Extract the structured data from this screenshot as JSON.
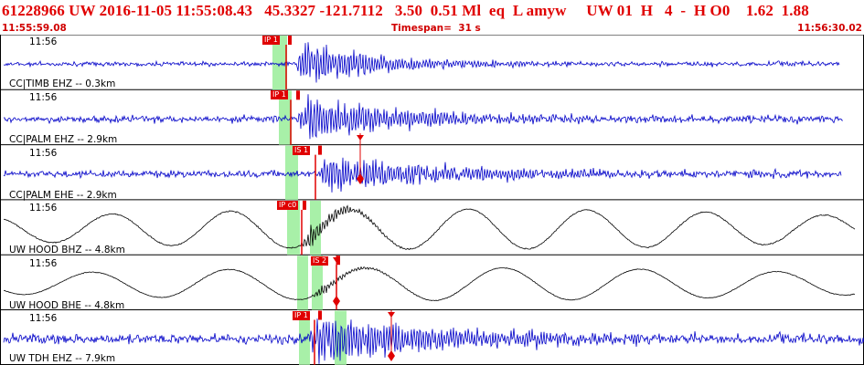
{
  "header": {
    "title": "61228966 UW 2016-11-05 11:55:08.43   45.3327 -121.7112   3.50  0.51 Ml  eq  L amyw     UW 01  H   4  -  H O0    1.62  1.88",
    "start_time": "11:55:59.08",
    "timespan": "Timespan=  31 s",
    "end_time": "11:56:30.02"
  },
  "colors": {
    "title": "#e00000",
    "trace_blue": "#0000c8",
    "trace_black": "#000000",
    "pick_red": "#e00000",
    "window_green": "#a8f0a8"
  },
  "panels": [
    {
      "time_label": "11:56",
      "channel_label": "CC|TIMB EHZ -- 0.3km",
      "trace_color": "blue",
      "picks": [
        {
          "label": "IP 1"
        }
      ]
    },
    {
      "time_label": "11:56",
      "channel_label": "CC|PALM EHZ -- 2.9km",
      "trace_color": "blue",
      "picks": [
        {
          "label": "IP 1"
        }
      ]
    },
    {
      "time_label": "11:56",
      "channel_label": "CC|PALM EHE -- 2.9km",
      "trace_color": "blue",
      "picks": [
        {
          "label": "IS 1"
        }
      ]
    },
    {
      "time_label": "11:56",
      "channel_label": "UW HOOD BHZ -- 4.8km",
      "trace_color": "black",
      "picks": [
        {
          "label": "IP c0"
        }
      ]
    },
    {
      "time_label": "11:56",
      "channel_label": "UW HOOD BHE -- 4.8km",
      "trace_color": "black",
      "picks": [
        {
          "label": "IS 2"
        }
      ]
    },
    {
      "time_label": "11:56",
      "channel_label": "UW TDH EHZ -- 7.9km",
      "trace_color": "blue",
      "picks": [
        {
          "label": "IP 1"
        }
      ]
    }
  ]
}
